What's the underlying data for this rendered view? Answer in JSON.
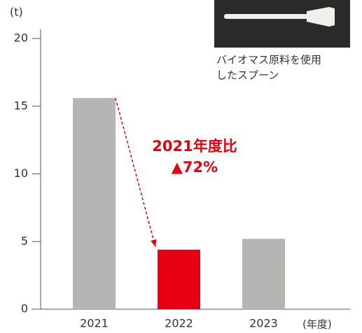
{
  "chart_data": {
    "type": "bar",
    "y_label": "(t)",
    "x_label": "(年度)",
    "categories": [
      "2021",
      "2022",
      "2023"
    ],
    "values": [
      15.6,
      4.4,
      5.2
    ],
    "colors": [
      "#b5b5b4",
      "#e60012",
      "#b5b5b4"
    ],
    "ylim": [
      0,
      20
    ],
    "yticks": [
      0,
      5,
      10,
      15,
      20
    ],
    "annotations": [
      "2021年度比",
      "▲72%"
    ],
    "image_caption": [
      "バイオマス原料を使用",
      "したスプーン"
    ]
  }
}
